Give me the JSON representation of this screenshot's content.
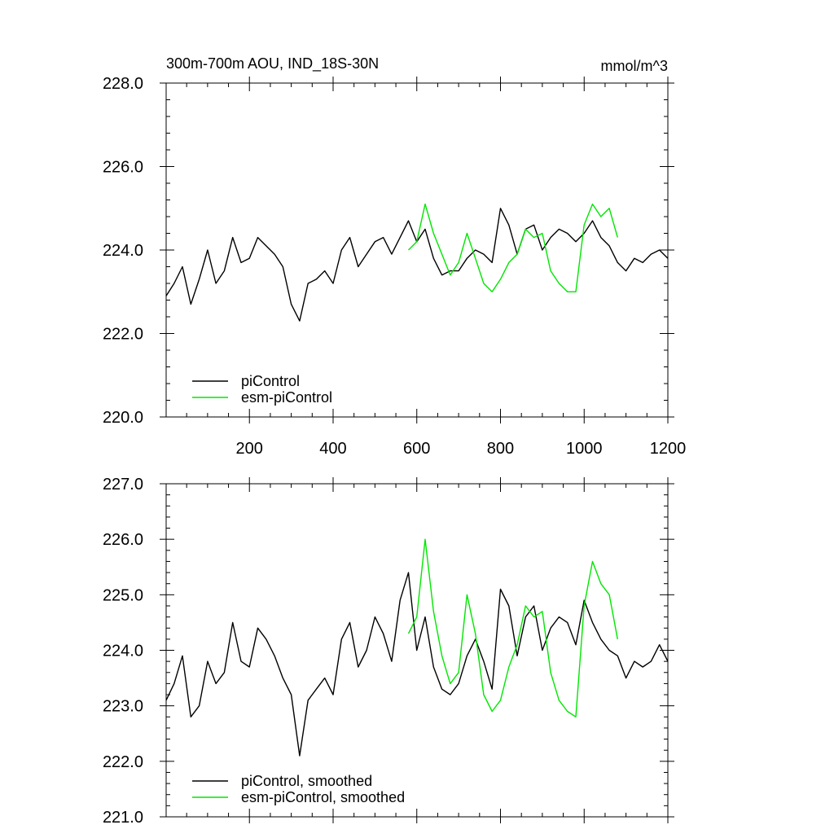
{
  "title_left": "300m-700m AOU, IND_18S-30N",
  "title_right": "mmol/m^3",
  "colors": {
    "picontrol": "#000000",
    "esm_picontrol": "#00e600"
  },
  "chart_data": [
    {
      "type": "line",
      "panel": "top",
      "xlim": [
        1,
        1200
      ],
      "ylim": [
        220,
        228
      ],
      "xticks": [
        200,
        400,
        600,
        800,
        1000,
        1200
      ],
      "xtick_labels": [
        "200",
        "400",
        "600",
        "800",
        "1000",
        "1200"
      ],
      "yticks": [
        220,
        222,
        224,
        226,
        228
      ],
      "ytick_labels": [
        "220.0",
        "222.0",
        "224.0",
        "226.0",
        "228.0"
      ],
      "legend_position": "bottom-left",
      "series": [
        {
          "name": "piControl",
          "color": "#000000",
          "x": [
            1,
            20,
            40,
            60,
            80,
            100,
            120,
            140,
            160,
            180,
            200,
            220,
            240,
            260,
            280,
            300,
            320,
            340,
            360,
            380,
            400,
            420,
            440,
            460,
            480,
            500,
            520,
            540,
            560,
            580,
            600,
            620,
            640,
            660,
            680,
            700,
            720,
            740,
            760,
            780,
            800,
            820,
            840,
            860,
            880,
            900,
            920,
            940,
            960,
            980,
            1000,
            1020,
            1040,
            1060,
            1080,
            1100,
            1120,
            1140,
            1160,
            1180,
            1200
          ],
          "y": [
            222.9,
            223.2,
            223.6,
            222.7,
            223.3,
            224.0,
            223.2,
            223.5,
            224.3,
            223.7,
            223.8,
            224.3,
            224.1,
            223.9,
            223.6,
            222.7,
            222.3,
            223.2,
            223.3,
            223.5,
            223.2,
            224.0,
            224.3,
            223.6,
            223.9,
            224.2,
            224.3,
            223.9,
            224.3,
            224.7,
            224.2,
            224.5,
            223.8,
            223.4,
            223.5,
            223.5,
            223.8,
            224.0,
            223.9,
            223.7,
            225.0,
            224.6,
            223.9,
            224.5,
            224.6,
            224.0,
            224.3,
            224.5,
            224.4,
            224.2,
            224.4,
            224.7,
            224.3,
            224.1,
            223.7,
            223.5,
            223.8,
            223.7,
            223.9,
            224.0,
            223.8
          ]
        },
        {
          "name": "esm-piControl",
          "color": "#00e600",
          "x": [
            580,
            600,
            620,
            640,
            660,
            680,
            700,
            720,
            740,
            760,
            780,
            800,
            820,
            840,
            860,
            880,
            900,
            920,
            940,
            960,
            980,
            1000,
            1020,
            1040,
            1060,
            1080
          ],
          "y": [
            224.0,
            224.2,
            225.1,
            224.4,
            223.9,
            223.4,
            223.7,
            224.4,
            223.8,
            223.2,
            223.0,
            223.3,
            223.7,
            223.9,
            224.5,
            224.3,
            224.4,
            223.5,
            223.2,
            223.0,
            223.0,
            224.6,
            225.1,
            224.8,
            225.0,
            224.3
          ]
        }
      ]
    },
    {
      "type": "line",
      "panel": "bottom",
      "xlim": [
        1,
        1200
      ],
      "ylim": [
        221,
        227
      ],
      "yticks": [
        221,
        222,
        223,
        224,
        225,
        226,
        227
      ],
      "ytick_labels": [
        "221.0",
        "222.0",
        "223.0",
        "224.0",
        "225.0",
        "226.0",
        "227.0"
      ],
      "legend_position": "bottom-left",
      "series": [
        {
          "name": "piControl, smoothed",
          "color": "#000000",
          "x": [
            1,
            20,
            40,
            60,
            80,
            100,
            120,
            140,
            160,
            180,
            200,
            220,
            240,
            260,
            280,
            300,
            320,
            340,
            360,
            380,
            400,
            420,
            440,
            460,
            480,
            500,
            520,
            540,
            560,
            580,
            600,
            620,
            640,
            660,
            680,
            700,
            720,
            740,
            760,
            780,
            800,
            820,
            840,
            860,
            880,
            900,
            920,
            940,
            960,
            980,
            1000,
            1020,
            1040,
            1060,
            1080,
            1100,
            1120,
            1140,
            1160,
            1180,
            1200
          ],
          "y": [
            223.1,
            223.4,
            223.9,
            222.8,
            223.0,
            223.8,
            223.4,
            223.6,
            224.5,
            223.8,
            223.7,
            224.4,
            224.2,
            223.9,
            223.5,
            223.2,
            222.1,
            223.1,
            223.3,
            223.5,
            223.2,
            224.2,
            224.5,
            223.7,
            224.0,
            224.6,
            224.3,
            223.8,
            224.9,
            225.4,
            224.0,
            224.6,
            223.7,
            223.3,
            223.2,
            223.4,
            223.9,
            224.2,
            223.8,
            223.3,
            225.1,
            224.8,
            223.9,
            224.6,
            224.8,
            224.0,
            224.4,
            224.6,
            224.5,
            224.1,
            224.9,
            224.5,
            224.2,
            224.0,
            223.9,
            223.5,
            223.8,
            223.7,
            223.8,
            224.1,
            223.8
          ]
        },
        {
          "name": "esm-piControl, smoothed",
          "color": "#00e600",
          "x": [
            580,
            600,
            620,
            640,
            660,
            680,
            700,
            720,
            740,
            760,
            780,
            800,
            820,
            840,
            860,
            880,
            900,
            920,
            940,
            960,
            980,
            1000,
            1020,
            1040,
            1060,
            1080
          ],
          "y": [
            224.3,
            224.6,
            226.0,
            224.7,
            223.9,
            223.4,
            223.6,
            225.0,
            224.3,
            223.2,
            222.9,
            223.1,
            223.7,
            224.1,
            224.8,
            224.6,
            224.7,
            223.6,
            223.1,
            222.9,
            222.8,
            224.8,
            225.6,
            225.2,
            225.0,
            224.2
          ]
        }
      ]
    }
  ]
}
